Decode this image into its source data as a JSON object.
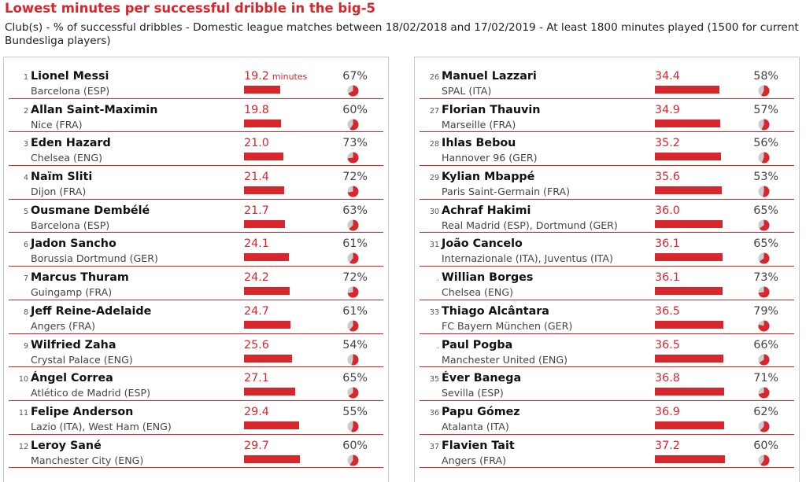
{
  "title": "Lowest minutes per successful dribble in the big-5",
  "subtitle": "Club(s) - % of successful dribbles - Domestic league matches between 18/02/2018 and 17/02/2019 - At least 1800 minutes played (1500 for current Bundesliga players)",
  "unit_label": "minutes",
  "colors": {
    "accent": "#d7262c",
    "pie_bg": "#cccccc"
  },
  "chart_data": {
    "type": "bar",
    "title": "Lowest minutes per successful dribble in the big-5",
    "subtitle": "Club(s) - % of successful dribbles - Domestic league matches between 18/02/2018 and 17/02/2019 - At least 1800 minutes played (1500 for current Bundesliga players)",
    "columns": [
      {
        "rows": [
          {
            "rank": "1",
            "name": "Lionel Messi",
            "club": "Barcelona (ESP)",
            "minutes": 19.2,
            "minutes_label": "19.2",
            "pct": 67,
            "pct_label": "67%"
          },
          {
            "rank": "2",
            "name": "Allan Saint-Maximin",
            "club": "Nice (FRA)",
            "minutes": 19.8,
            "minutes_label": "19.8",
            "pct": 60,
            "pct_label": "60%"
          },
          {
            "rank": "3",
            "name": "Eden Hazard",
            "club": "Chelsea (ENG)",
            "minutes": 21.0,
            "minutes_label": "21.0",
            "pct": 73,
            "pct_label": "73%"
          },
          {
            "rank": "4",
            "name": "Naïm Sliti",
            "club": "Dijon (FRA)",
            "minutes": 21.4,
            "minutes_label": "21.4",
            "pct": 72,
            "pct_label": "72%"
          },
          {
            "rank": "5",
            "name": "Ousmane Dembélé",
            "club": "Barcelona (ESP)",
            "minutes": 21.7,
            "minutes_label": "21.7",
            "pct": 63,
            "pct_label": "63%"
          },
          {
            "rank": "6",
            "name": "Jadon Sancho",
            "club": "Borussia Dortmund (GER)",
            "minutes": 24.1,
            "minutes_label": "24.1",
            "pct": 61,
            "pct_label": "61%"
          },
          {
            "rank": "7",
            "name": "Marcus Thuram",
            "club": "Guingamp (FRA)",
            "minutes": 24.2,
            "minutes_label": "24.2",
            "pct": 72,
            "pct_label": "72%"
          },
          {
            "rank": "8",
            "name": "Jeff Reine-Adelaide",
            "club": "Angers (FRA)",
            "minutes": 24.7,
            "minutes_label": "24.7",
            "pct": 61,
            "pct_label": "61%"
          },
          {
            "rank": "9",
            "name": "Wilfried Zaha",
            "club": "Crystal Palace (ENG)",
            "minutes": 25.6,
            "minutes_label": "25.6",
            "pct": 54,
            "pct_label": "54%"
          },
          {
            "rank": "10",
            "name": "Ángel Correa",
            "club": "Atlético de Madrid (ESP)",
            "minutes": 27.1,
            "minutes_label": "27.1",
            "pct": 65,
            "pct_label": "65%"
          },
          {
            "rank": "11",
            "name": "Felipe Anderson",
            "club": "Lazio (ITA), West Ham (ENG)",
            "minutes": 29.4,
            "minutes_label": "29.4",
            "pct": 55,
            "pct_label": "55%"
          },
          {
            "rank": "12",
            "name": "Leroy Sané",
            "club": "Manchester City (ENG)",
            "minutes": 29.7,
            "minutes_label": "29.7",
            "pct": 60,
            "pct_label": "60%"
          }
        ]
      },
      {
        "rows": [
          {
            "rank": "26",
            "name": "Manuel Lazzari",
            "club": "SPAL (ITA)",
            "minutes": 34.4,
            "minutes_label": "34.4",
            "pct": 58,
            "pct_label": "58%"
          },
          {
            "rank": "27",
            "name": "Florian Thauvin",
            "club": "Marseille (FRA)",
            "minutes": 34.9,
            "minutes_label": "34.9",
            "pct": 57,
            "pct_label": "57%"
          },
          {
            "rank": "28",
            "name": "Ihlas Bebou",
            "club": "Hannover 96 (GER)",
            "minutes": 35.2,
            "minutes_label": "35.2",
            "pct": 56,
            "pct_label": "56%"
          },
          {
            "rank": "29",
            "name": "Kylian Mbappé",
            "club": "Paris Saint-Germain (FRA)",
            "minutes": 35.6,
            "minutes_label": "35.6",
            "pct": 53,
            "pct_label": "53%"
          },
          {
            "rank": "30",
            "name": "Achraf Hakimi",
            "club": "Real Madrid (ESP), Dortmund (GER)",
            "minutes": 36.0,
            "minutes_label": "36.0",
            "pct": 65,
            "pct_label": "65%"
          },
          {
            "rank": "31",
            "name": "João Cancelo",
            "club": "Internazionale (ITA), Juventus (ITA)",
            "minutes": 36.1,
            "minutes_label": "36.1",
            "pct": 65,
            "pct_label": "65%"
          },
          {
            "rank": ".",
            "name": "Willian Borges",
            "club": "Chelsea (ENG)",
            "minutes": 36.1,
            "minutes_label": "36.1",
            "pct": 73,
            "pct_label": "73%"
          },
          {
            "rank": "33",
            "name": "Thiago Alcântara",
            "club": "FC Bayern München (GER)",
            "minutes": 36.5,
            "minutes_label": "36.5",
            "pct": 79,
            "pct_label": "79%"
          },
          {
            "rank": ".",
            "name": "Paul Pogba",
            "club": "Manchester United (ENG)",
            "minutes": 36.5,
            "minutes_label": "36.5",
            "pct": 66,
            "pct_label": "66%"
          },
          {
            "rank": "35",
            "name": "Éver Banega",
            "club": "Sevilla (ESP)",
            "minutes": 36.8,
            "minutes_label": "36.8",
            "pct": 71,
            "pct_label": "71%"
          },
          {
            "rank": "36",
            "name": "Papu Gómez",
            "club": "Atalanta (ITA)",
            "minutes": 36.9,
            "minutes_label": "36.9",
            "pct": 62,
            "pct_label": "62%"
          },
          {
            "rank": "37",
            "name": "Flavien Tait",
            "club": "Angers (FRA)",
            "minutes": 37.2,
            "minutes_label": "37.2",
            "pct": 60,
            "pct_label": "60%"
          }
        ]
      }
    ]
  }
}
